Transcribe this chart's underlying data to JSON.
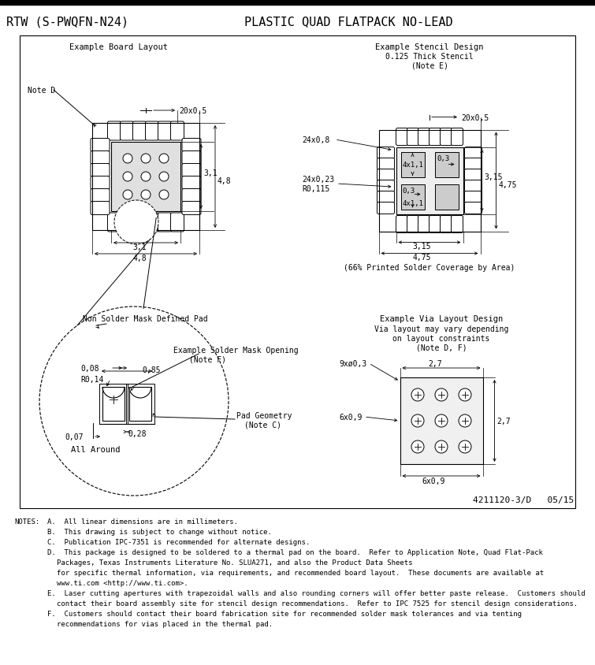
{
  "title_left": "RTW (S-PWQFN-N24)",
  "title_right": "PLASTIC QUAD FLATPACK NO-LEAD",
  "bg_color": "#ffffff",
  "notes_lines": [
    [
      "NOTES:",
      18,
      663
    ],
    [
      "A.  All linear dimensions are in millimeters.",
      60,
      663
    ],
    [
      "B.  This drawing is subject to change without notice.",
      60,
      676
    ],
    [
      "C.  Publication IPC-7351 is recommended for alternate designs.",
      60,
      689
    ],
    [
      "D.  This package is designed to be soldered to a thermal pad on the board.  Refer to Application Note, Quad Flat-Pack",
      60,
      702
    ],
    [
      "Packages, Texas Instruments Literature No. SLUA271, and also the Product Data Sheets",
      72,
      715
    ],
    [
      "for specific thermal information, via requirements, and recommended board layout.  These documents are available at",
      72,
      728
    ],
    [
      "www.ti.com <http://www.ti.com>.",
      72,
      741
    ],
    [
      "E.  Laser cutting apertures with trapezoidal walls and also rounding corners will offer better paste release.  Customers should",
      60,
      754
    ],
    [
      "contact their board assembly site for stencil design recommendations.  Refer to IPC 7525 for stencil design considerations.",
      72,
      767
    ],
    [
      "F.  Customers should contact their board fabrication site for recommended solder mask tolerances and via tenting",
      60,
      780
    ],
    [
      "recommendations for vias placed in the thermal pad.",
      72,
      793
    ]
  ],
  "doc_number": "4211120-3/D   05/15"
}
